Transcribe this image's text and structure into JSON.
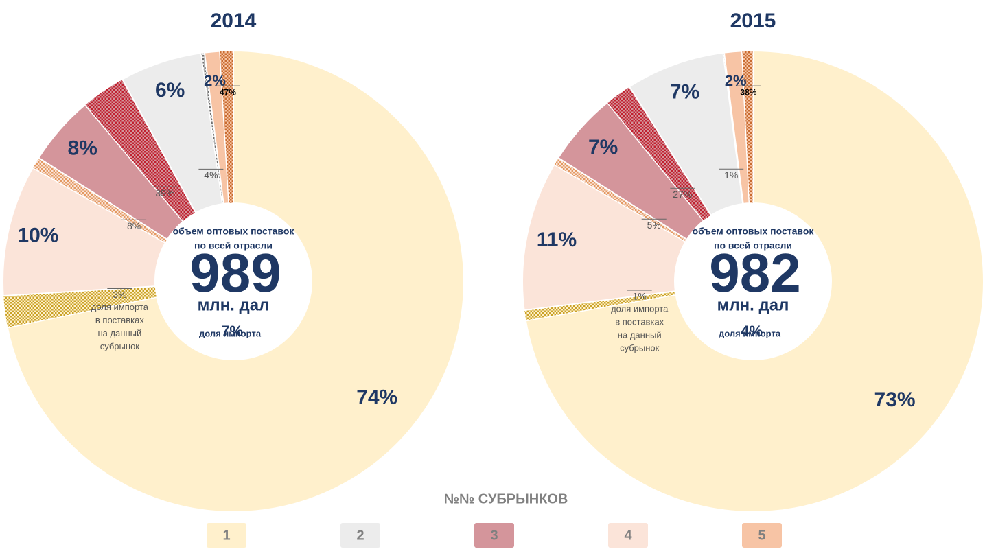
{
  "chart_data": [
    {
      "type": "pie",
      "title": "2014",
      "values": [
        74,
        6,
        8,
        10,
        2
      ],
      "value_labels": [
        "74%",
        "6%",
        "8%",
        "10%",
        "2%"
      ],
      "import_shares": [
        3,
        4,
        39,
        8,
        47
      ],
      "import_labels": [
        "3%",
        "4%",
        "39%",
        "8%",
        "47%"
      ],
      "annotation": [
        "доля импорта",
        "в поставках",
        "на данный",
        "субрынок"
      ],
      "center_caption": [
        "объем оптовых поставок",
        "по всей отрасли"
      ],
      "total": 989,
      "unit": "млн. дал",
      "import_caption": "доля импорта",
      "import_total": 7,
      "import_total_label": "7%"
    },
    {
      "type": "pie",
      "title": "2015",
      "values": [
        73,
        7,
        7,
        11,
        2
      ],
      "value_labels": [
        "73%",
        "7%",
        "7%",
        "11%",
        "2%"
      ],
      "import_shares": [
        1,
        1,
        27,
        5,
        38
      ],
      "import_labels": [
        "1%",
        "1%",
        "27%",
        "5%",
        "38%"
      ],
      "annotation": [
        "доля импорта",
        "в поставках",
        "на данный",
        "субрынок"
      ],
      "center_caption": [
        "объем оптовых поставок",
        "по всей отрасли"
      ],
      "total": 982,
      "unit": "млн. дал",
      "import_caption": "доля импорта",
      "import_total": 4,
      "import_total_label": "4%"
    }
  ],
  "legend": {
    "title": "№№ СУБРЫНКОВ",
    "categories": [
      "1",
      "2",
      "3",
      "4",
      "5"
    ],
    "colors": [
      "#fff0cc",
      "#ececec",
      "#d4959b",
      "#fbe4d9",
      "#f7c4a5"
    ],
    "hatch_colors": [
      "#c9a227",
      "#707070",
      "#c0202f",
      "#e39a62",
      "#c86b30"
    ]
  }
}
